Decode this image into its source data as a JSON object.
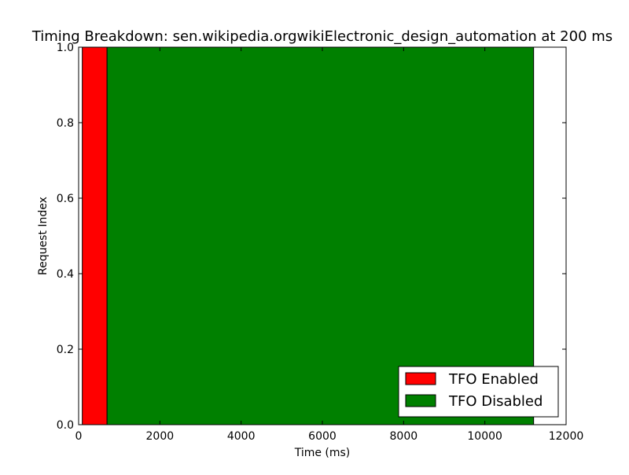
{
  "chart_data": {
    "type": "bar",
    "orientation": "horizontal-span",
    "title": "Timing Breakdown: sen.wikipedia.orgwikiElectronic_design_automation at 200 ms",
    "xlabel": "Time (ms)",
    "ylabel": "Request Index",
    "xlim": [
      0,
      12000
    ],
    "ylim": [
      0.0,
      1.0
    ],
    "x_ticks": [
      0,
      2000,
      4000,
      6000,
      8000,
      10000,
      12000
    ],
    "y_ticks": [
      0.0,
      0.2,
      0.4,
      0.6,
      0.8,
      1.0
    ],
    "x_tick_labels": [
      "0",
      "2000",
      "4000",
      "6000",
      "8000",
      "10000",
      "12000"
    ],
    "y_tick_labels": [
      "0.0",
      "0.2",
      "0.4",
      "0.6",
      "0.8",
      "1.0"
    ],
    "grid": false,
    "legend_position": "lower-right",
    "series": [
      {
        "name": "TFO Enabled",
        "color": "#ff0000",
        "spans": [
          {
            "start": 90,
            "end": 700,
            "y0": 0.0,
            "y1": 1.0
          }
        ]
      },
      {
        "name": "TFO Disabled",
        "color": "#008000",
        "spans": [
          {
            "start": 700,
            "end": 11200,
            "y0": 0.0,
            "y1": 1.0
          }
        ]
      }
    ]
  }
}
